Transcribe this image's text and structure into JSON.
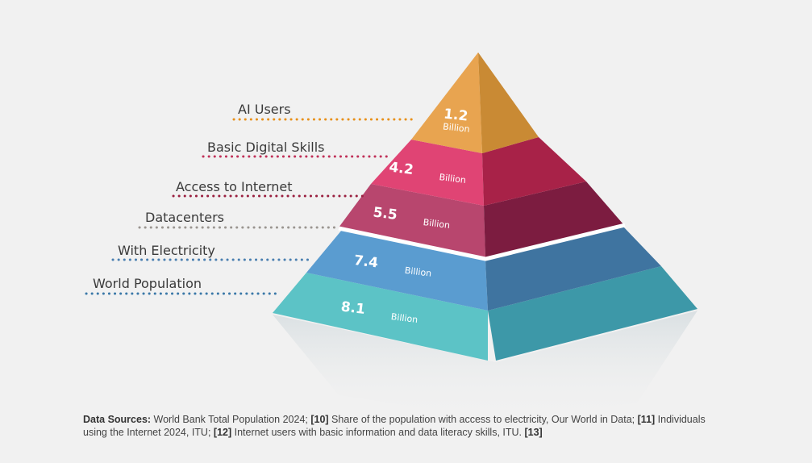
{
  "levels": [
    {
      "label": "AI Users",
      "value": "1.2",
      "unit": "Billion",
      "color": "#e8a84a",
      "line_color": "#e8901a"
    },
    {
      "label": "Basic Digital Skills",
      "value": "4.2",
      "unit": "Billion",
      "color": "#d8386a",
      "line_color": "#c03058"
    },
    {
      "label": "Access to Internet",
      "value": "5.5",
      "unit": "Billion",
      "color": "#9a2448",
      "line_color": "#9a2040"
    },
    {
      "label": "Datacenters",
      "line_color": "#9a9590"
    },
    {
      "label": "With Electricity",
      "value": "7.4",
      "unit": "Billion",
      "color": "#4a88bb",
      "line_color": "#4a7fb0"
    },
    {
      "label": "World Population",
      "value": "8.1",
      "unit": "Billion",
      "color": "#4fb7c0",
      "line_color": "#3a78a8"
    }
  ],
  "sources": {
    "heading": "Data Sources:",
    "parts": [
      " World Bank Total Population 2024; ",
      "[10]",
      " Share of the population with access to electricity, Our World in Data; ",
      "[11]",
      " Individuals using the Internet 2024, ITU; ",
      "[12]",
      " Internet users with basic information and data literacy skills, ITU. ",
      "[13]"
    ]
  }
}
